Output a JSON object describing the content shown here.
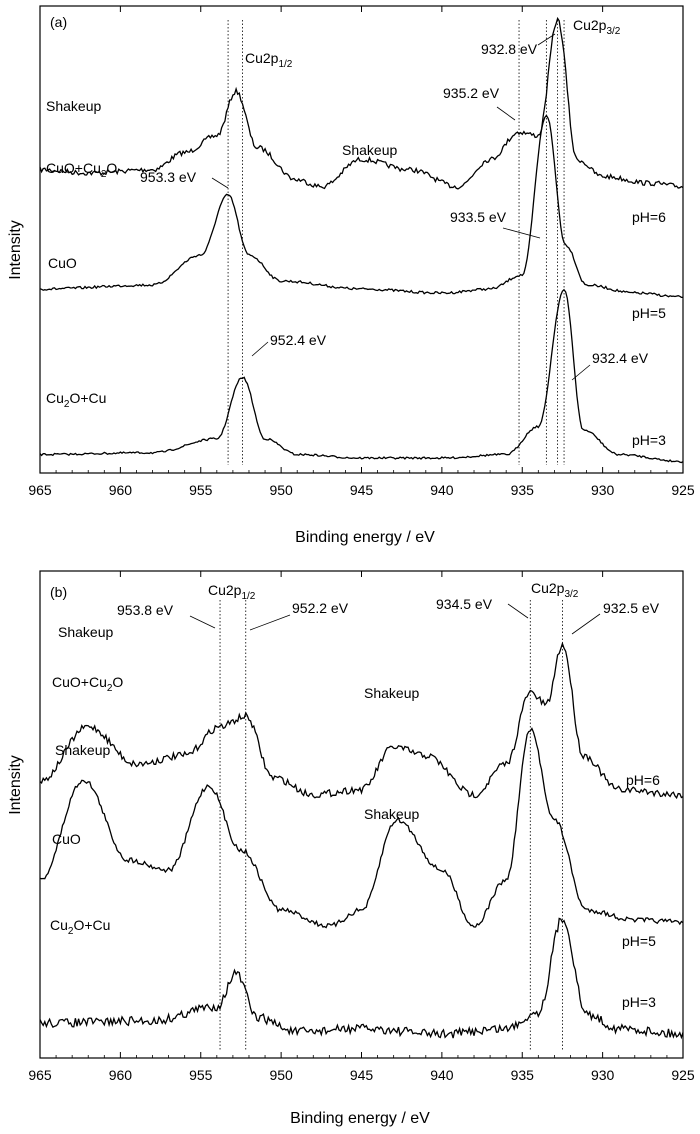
{
  "chart_data": [
    {
      "panel_label": "(a)",
      "type": "line",
      "xlabel": "Binding energy / eV",
      "ylabel": "Intensity",
      "xlim": [
        965,
        925
      ],
      "x_reversed": true,
      "xticks": [
        965,
        960,
        955,
        950,
        945,
        940,
        935,
        930,
        925
      ],
      "peak_labels": {
        "p12": {
          "main": "Cu2p",
          "sub": "1/2"
        },
        "p32": {
          "main": "Cu2p",
          "sub": "3/2"
        }
      },
      "series": [
        {
          "name": "pH=6",
          "left_label": "Shakeup",
          "composition": {
            "a": "CuO+Cu",
            "sub": "2",
            "b": "O"
          },
          "peaks": [
            {
              "x": 965,
              "y": 0.12
            },
            {
              "x": 962,
              "y": 0.1
            },
            {
              "x": 958,
              "y": 0.12
            },
            {
              "x": 956,
              "y": 0.22
            },
            {
              "x": 954,
              "y": 0.32
            },
            {
              "x": 952.8,
              "y": 0.58
            },
            {
              "x": 951.5,
              "y": 0.25
            },
            {
              "x": 949,
              "y": 0.06
            },
            {
              "x": 947.5,
              "y": 0.02
            },
            {
              "x": 945,
              "y": 0.18
            },
            {
              "x": 942,
              "y": 0.12
            },
            {
              "x": 939,
              "y": 0.02
            },
            {
              "x": 937,
              "y": 0.18
            },
            {
              "x": 935.2,
              "y": 0.34
            },
            {
              "x": 934,
              "y": 0.32
            },
            {
              "x": 932.8,
              "y": 1.0
            },
            {
              "x": 931.6,
              "y": 0.18
            },
            {
              "x": 930,
              "y": 0.08
            },
            {
              "x": 927,
              "y": 0.04
            },
            {
              "x": 925,
              "y": 0.02
            }
          ]
        },
        {
          "name": "pH=5",
          "left_label": "",
          "composition": {
            "a": "CuO",
            "sub": "",
            "b": ""
          },
          "peaks": [
            {
              "x": 965,
              "y": 0.08
            },
            {
              "x": 958,
              "y": 0.1
            },
            {
              "x": 955,
              "y": 0.25
            },
            {
              "x": 953.3,
              "y": 0.55
            },
            {
              "x": 952,
              "y": 0.25
            },
            {
              "x": 950,
              "y": 0.12
            },
            {
              "x": 945,
              "y": 0.08
            },
            {
              "x": 940,
              "y": 0.06
            },
            {
              "x": 937,
              "y": 0.08
            },
            {
              "x": 935,
              "y": 0.15
            },
            {
              "x": 933.5,
              "y": 0.95
            },
            {
              "x": 932.3,
              "y": 0.3
            },
            {
              "x": 931,
              "y": 0.1
            },
            {
              "x": 928,
              "y": 0.06
            },
            {
              "x": 925,
              "y": 0.04
            }
          ]
        },
        {
          "name": "pH=3",
          "left_label": "",
          "composition": {
            "a": "Cu",
            "sub": "2",
            "b": "O+Cu"
          },
          "peaks": [
            {
              "x": 965,
              "y": 0.06
            },
            {
              "x": 958,
              "y": 0.07
            },
            {
              "x": 954,
              "y": 0.15
            },
            {
              "x": 952.4,
              "y": 0.5
            },
            {
              "x": 951,
              "y": 0.15
            },
            {
              "x": 949,
              "y": 0.06
            },
            {
              "x": 945,
              "y": 0.04
            },
            {
              "x": 940,
              "y": 0.04
            },
            {
              "x": 936,
              "y": 0.06
            },
            {
              "x": 934,
              "y": 0.22
            },
            {
              "x": 932.4,
              "y": 1.0
            },
            {
              "x": 931.2,
              "y": 0.2
            },
            {
              "x": 929,
              "y": 0.06
            },
            {
              "x": 925,
              "y": 0.02
            }
          ]
        }
      ],
      "annotations": [
        {
          "text": "932.8 eV",
          "target": 932.8
        },
        {
          "text": "935.2 eV",
          "target": 935.2
        },
        {
          "text": "953.3 eV",
          "target": 953.3
        },
        {
          "text": "933.5 eV",
          "target": 933.5
        },
        {
          "text": "952.4 eV",
          "target": 952.4
        },
        {
          "text": "932.4 eV",
          "target": 932.4
        },
        {
          "text": "Shakeup",
          "target": 945
        }
      ],
      "reference_lines": [
        953.3,
        952.4,
        935.2,
        933.5,
        932.8,
        932.4
      ]
    },
    {
      "panel_label": "(b)",
      "type": "line",
      "xlabel": "Binding energy / eV",
      "ylabel": "Intensity",
      "xlim": [
        965,
        925
      ],
      "x_reversed": true,
      "xticks": [
        965,
        960,
        955,
        950,
        945,
        940,
        935,
        930,
        925
      ],
      "peak_labels": {
        "p12": {
          "main": "Cu2p",
          "sub": "1/2"
        },
        "p32": {
          "main": "Cu2p",
          "sub": "3/2"
        }
      },
      "series": [
        {
          "name": "pH=6",
          "left_label": "Shakeup",
          "composition": {
            "a": "CuO+Cu",
            "sub": "2",
            "b": "O"
          },
          "peaks": [
            {
              "x": 965,
              "y": 0.1
            },
            {
              "x": 962,
              "y": 0.42
            },
            {
              "x": 959,
              "y": 0.2
            },
            {
              "x": 956,
              "y": 0.25
            },
            {
              "x": 953.8,
              "y": 0.42
            },
            {
              "x": 952.2,
              "y": 0.48
            },
            {
              "x": 950.5,
              "y": 0.12
            },
            {
              "x": 948,
              "y": 0.02
            },
            {
              "x": 945,
              "y": 0.05
            },
            {
              "x": 943,
              "y": 0.3
            },
            {
              "x": 941,
              "y": 0.25
            },
            {
              "x": 938,
              "y": 0.02
            },
            {
              "x": 936,
              "y": 0.2
            },
            {
              "x": 934.5,
              "y": 0.62
            },
            {
              "x": 933.5,
              "y": 0.55
            },
            {
              "x": 932.5,
              "y": 0.9
            },
            {
              "x": 931.2,
              "y": 0.25
            },
            {
              "x": 929,
              "y": 0.05
            },
            {
              "x": 925,
              "y": 0.02
            }
          ]
        },
        {
          "name": "pH=5",
          "left_label": "Shakeup",
          "composition": {
            "a": "CuO",
            "sub": "",
            "b": ""
          },
          "peaks": [
            {
              "x": 965,
              "y": 0.25
            },
            {
              "x": 962.3,
              "y": 0.75
            },
            {
              "x": 959.5,
              "y": 0.35
            },
            {
              "x": 957,
              "y": 0.3
            },
            {
              "x": 954.5,
              "y": 0.72
            },
            {
              "x": 952.5,
              "y": 0.4
            },
            {
              "x": 950,
              "y": 0.1
            },
            {
              "x": 947,
              "y": 0.02
            },
            {
              "x": 945,
              "y": 0.1
            },
            {
              "x": 942.8,
              "y": 0.55
            },
            {
              "x": 940,
              "y": 0.3
            },
            {
              "x": 938,
              "y": 0.02
            },
            {
              "x": 936,
              "y": 0.25
            },
            {
              "x": 934.5,
              "y": 1.0
            },
            {
              "x": 933,
              "y": 0.55
            },
            {
              "x": 931,
              "y": 0.1
            },
            {
              "x": 928,
              "y": 0.05
            },
            {
              "x": 925,
              "y": 0.04
            }
          ]
        },
        {
          "name": "pH=3",
          "left_label": "",
          "composition": {
            "a": "Cu",
            "sub": "2",
            "b": "O+Cu"
          },
          "peaks": [
            {
              "x": 965,
              "y": 0.2
            },
            {
              "x": 958,
              "y": 0.22
            },
            {
              "x": 954,
              "y": 0.35
            },
            {
              "x": 952.8,
              "y": 0.65
            },
            {
              "x": 951.5,
              "y": 0.25
            },
            {
              "x": 949,
              "y": 0.12
            },
            {
              "x": 945,
              "y": 0.15
            },
            {
              "x": 940,
              "y": 0.1
            },
            {
              "x": 936,
              "y": 0.15
            },
            {
              "x": 934,
              "y": 0.3
            },
            {
              "x": 932.5,
              "y": 1.15
            },
            {
              "x": 931,
              "y": 0.28
            },
            {
              "x": 929,
              "y": 0.15
            },
            {
              "x": 925,
              "y": 0.1
            }
          ]
        }
      ],
      "annotations": [
        {
          "text": "953.8 eV",
          "target": 953.8
        },
        {
          "text": "952.2 eV",
          "target": 952.2
        },
        {
          "text": "934.5 eV",
          "target": 934.5
        },
        {
          "text": "932.5 eV",
          "target": 932.5
        },
        {
          "text": "Shakeup",
          "target": 943
        },
        {
          "text": "Shakeup",
          "target": 943
        }
      ],
      "reference_lines": [
        953.8,
        952.2,
        934.5,
        932.5
      ]
    }
  ]
}
